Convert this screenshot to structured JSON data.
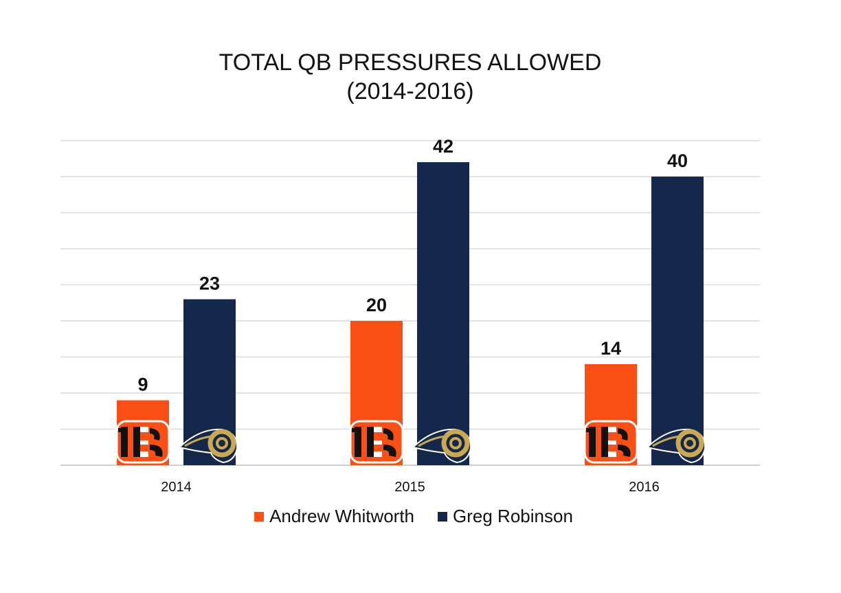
{
  "chart_data": {
    "type": "bar",
    "title": "TOTAL QB PRESSURES ALLOWED",
    "subtitle": "(2014-2016)",
    "categories": [
      "2014",
      "2015",
      "2016"
    ],
    "series": [
      {
        "name": "Andrew Whitworth",
        "values": [
          9,
          20,
          14
        ],
        "color": "#FB5015",
        "icon": "bengals-logo-icon"
      },
      {
        "name": "Greg Robinson",
        "values": [
          23,
          42,
          40
        ],
        "color": "#15284B",
        "icon": "rams-logo-icon"
      }
    ],
    "ylim": [
      0,
      45
    ],
    "grid": true,
    "data_labels": true,
    "legend_position": "bottom"
  },
  "colors": {
    "grid": "#d9d9d9",
    "axis": "#bfbfbf",
    "text": "#111111"
  }
}
